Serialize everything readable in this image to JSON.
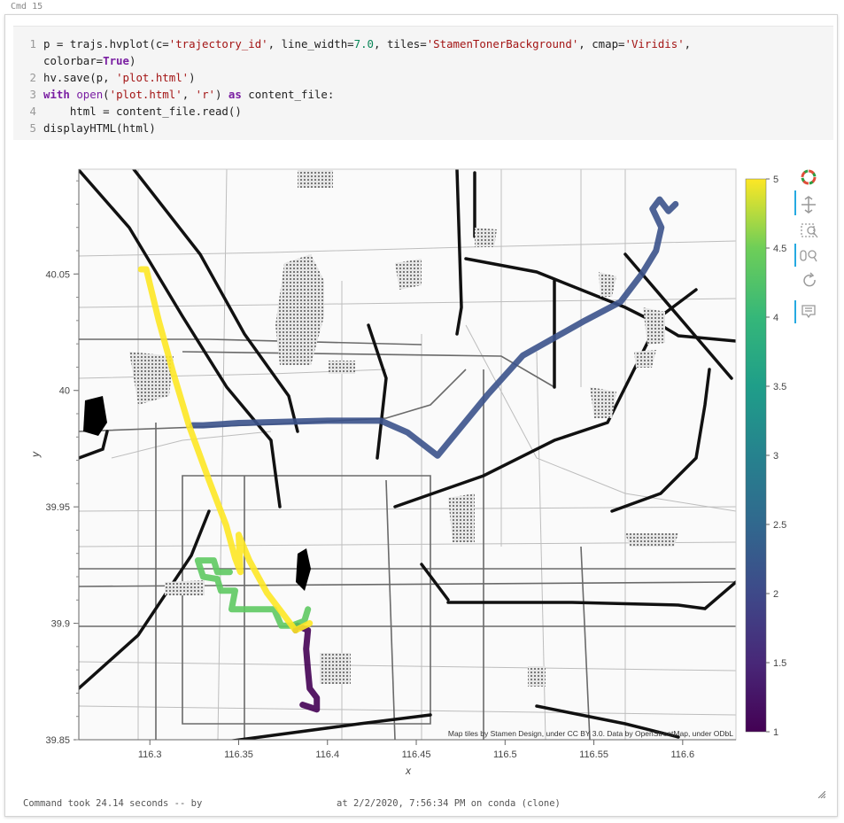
{
  "cell": {
    "label": "Cmd 15",
    "toolbar": {
      "run": "▶▾",
      "chart": "▥",
      "chevron": "⌄",
      "minimize": "–",
      "close": "✕"
    },
    "code_lines": [
      {
        "num": "1",
        "text": "p = trajs.hvplot(c='trajectory_id', line_width=7.0, tiles='StamenTonerBackground', cmap='Viridis',"
      },
      {
        "num": "",
        "text": "colorbar=True)"
      },
      {
        "num": "2",
        "text": "hv.save(p, 'plot.html')"
      },
      {
        "num": "3",
        "text": "with open('plot.html', 'r') as content_file:"
      },
      {
        "num": "4",
        "text": "    html = content_file.read()"
      },
      {
        "num": "5",
        "text": "displayHTML(html)"
      }
    ],
    "footer": "Command took 24.14 seconds -- by                        at 2/2/2020, 7:56:34 PM on conda (clone)"
  },
  "chart_data": {
    "type": "line",
    "xlabel": "x",
    "ylabel": "y",
    "xlim": [
      116.26,
      116.63
    ],
    "ylim": [
      39.85,
      40.095
    ],
    "x_ticks": [
      "116.3",
      "116.35",
      "116.4",
      "116.45",
      "116.5",
      "116.55",
      "116.6"
    ],
    "y_ticks": [
      "39.85",
      "39.9",
      "39.95",
      "40",
      "40.05"
    ],
    "colorbar": {
      "min": 1,
      "max": 5,
      "ticks": [
        "1",
        "1.5",
        "2",
        "2.5",
        "3",
        "3.5",
        "4",
        "4.5",
        "5"
      ],
      "cmap": "Viridis"
    },
    "attribution": "Map tiles by Stamen Design, under CC BY 3.0. Data by OpenStreetMap, under ODbL",
    "series": [
      {
        "trajectory_id": 1,
        "color": "#440154",
        "x": [
          116.382,
          116.383,
          116.389,
          116.388,
          116.389,
          116.39,
          116.394,
          116.394,
          116.386
        ],
        "y": [
          39.897,
          39.899,
          39.897,
          39.889,
          39.88,
          39.872,
          39.868,
          39.863,
          39.865
        ]
      },
      {
        "trajectory_id": 2,
        "color": "#3b528b",
        "x": [
          116.324,
          116.33,
          116.35,
          116.4,
          116.43,
          116.445,
          116.462,
          116.49,
          116.51,
          116.545,
          116.565,
          116.577,
          116.585,
          116.588,
          116.583,
          116.587,
          116.592,
          116.596
        ],
        "y": [
          39.985,
          39.985,
          39.986,
          39.987,
          39.987,
          39.982,
          39.972,
          39.998,
          40.015,
          40.03,
          40.038,
          40.05,
          40.06,
          40.07,
          40.078,
          40.082,
          40.077,
          40.08
        ]
      },
      {
        "trajectory_id": 4,
        "color": "#5ec962",
        "x": [
          116.389,
          116.387,
          116.38,
          116.374,
          116.37,
          116.357,
          116.346,
          116.348,
          116.34,
          116.338,
          116.33,
          116.327,
          116.336,
          116.338,
          116.345
        ],
        "y": [
          39.906,
          39.901,
          39.899,
          39.899,
          39.906,
          39.906,
          39.906,
          39.914,
          39.914,
          39.919,
          39.92,
          39.927,
          39.927,
          39.922,
          39.922
        ]
      },
      {
        "trajectory_id": 5,
        "color": "#fde725",
        "x": [
          116.295,
          116.298,
          116.305,
          116.313,
          116.322,
          116.333,
          116.343,
          116.348,
          116.351,
          116.35,
          116.356,
          116.366,
          116.377,
          116.382,
          116.39
        ],
        "y": [
          40.052,
          40.052,
          40.03,
          40.008,
          39.985,
          39.962,
          39.942,
          39.928,
          39.922,
          39.938,
          39.927,
          39.913,
          39.902,
          39.897,
          39.9
        ]
      }
    ]
  }
}
